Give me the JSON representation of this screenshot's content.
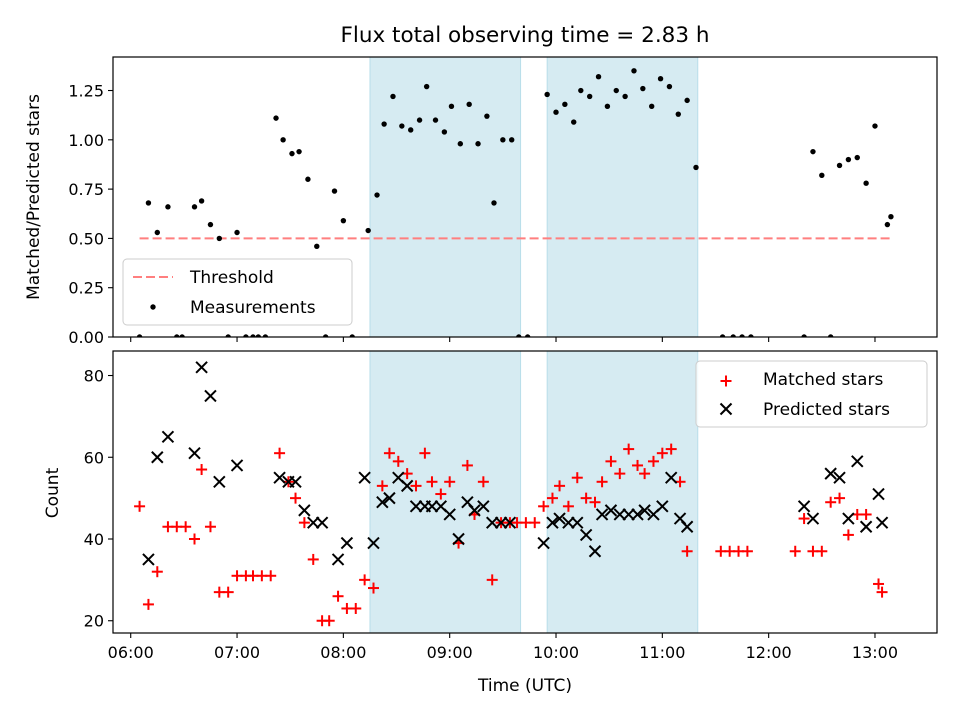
{
  "figure": {
    "title": "Flux total observing time = 2.83 h"
  },
  "chart_data": [
    {
      "type": "scatter",
      "ylabel": "Matched/Predicted stars",
      "ylim": [
        0,
        1.42
      ],
      "yticks": [
        "0.00",
        "0.25",
        "0.50",
        "0.75",
        "1.00",
        "1.25"
      ],
      "ytick_values": [
        0,
        0.25,
        0.5,
        0.75,
        1.0,
        1.25
      ],
      "xlim": [
        "05:50",
        "13:35"
      ],
      "shaded_intervals": [
        [
          "08:15",
          "09:40"
        ],
        [
          "09:55",
          "11:20"
        ]
      ],
      "shade_color": "#add8e6",
      "legend_position": "lower-left",
      "threshold": {
        "name": "Threshold",
        "value": 0.5,
        "x_range": [
          "06:05",
          "13:10"
        ],
        "color": "#ff7f7f"
      },
      "series": [
        {
          "name": "Measurements",
          "color": "#000000",
          "points": [
            [
              "06:05",
              0
            ],
            [
              "06:10",
              0.68
            ],
            [
              "06:15",
              0.53
            ],
            [
              "06:21",
              0.66
            ],
            [
              "06:26",
              0
            ],
            [
              "06:29",
              0
            ],
            [
              "06:36",
              0.66
            ],
            [
              "06:40",
              0.69
            ],
            [
              "06:45",
              0.57
            ],
            [
              "06:50",
              0.5
            ],
            [
              "06:55",
              0
            ],
            [
              "07:00",
              0.53
            ],
            [
              "07:05",
              0
            ],
            [
              "07:09",
              0
            ],
            [
              "07:12",
              0
            ],
            [
              "07:16",
              0
            ],
            [
              "07:22",
              1.11
            ],
            [
              "07:26",
              1.0
            ],
            [
              "07:31",
              0.93
            ],
            [
              "07:35",
              0.94
            ],
            [
              "07:40",
              0.8
            ],
            [
              "07:45",
              0.46
            ],
            [
              "07:50",
              0
            ],
            [
              "07:55",
              0.74
            ],
            [
              "08:00",
              0.59
            ],
            [
              "08:05",
              0
            ],
            [
              "08:14",
              0.54
            ],
            [
              "08:19",
              0.72
            ],
            [
              "08:23",
              1.08
            ],
            [
              "08:28",
              1.22
            ],
            [
              "08:33",
              1.07
            ],
            [
              "08:38",
              1.05
            ],
            [
              "08:43",
              1.1
            ],
            [
              "08:47",
              1.27
            ],
            [
              "08:52",
              1.1
            ],
            [
              "08:57",
              1.04
            ],
            [
              "09:01",
              1.17
            ],
            [
              "09:06",
              0.98
            ],
            [
              "09:11",
              1.18
            ],
            [
              "09:16",
              0.98
            ],
            [
              "09:21",
              1.12
            ],
            [
              "09:25",
              0.68
            ],
            [
              "09:30",
              1.0
            ],
            [
              "09:35",
              1.0
            ],
            [
              "09:39",
              0
            ],
            [
              "09:44",
              0
            ],
            [
              "09:55",
              1.23
            ],
            [
              "10:00",
              1.14
            ],
            [
              "10:05",
              1.18
            ],
            [
              "10:10",
              1.09
            ],
            [
              "10:14",
              1.25
            ],
            [
              "10:19",
              1.22
            ],
            [
              "10:24",
              1.32
            ],
            [
              "10:29",
              1.17
            ],
            [
              "10:34",
              1.25
            ],
            [
              "10:39",
              1.22
            ],
            [
              "10:44",
              1.35
            ],
            [
              "10:49",
              1.26
            ],
            [
              "10:54",
              1.17
            ],
            [
              "10:59",
              1.31
            ],
            [
              "11:04",
              1.27
            ],
            [
              "11:09",
              1.13
            ],
            [
              "11:14",
              1.2
            ],
            [
              "11:19",
              0.86
            ],
            [
              "11:34",
              0
            ],
            [
              "11:40",
              0
            ],
            [
              "11:45",
              0
            ],
            [
              "11:50",
              0
            ],
            [
              "12:20",
              0
            ],
            [
              "12:25",
              0.94
            ],
            [
              "12:30",
              0.82
            ],
            [
              "12:35",
              0
            ],
            [
              "12:40",
              0.87
            ],
            [
              "12:45",
              0.9
            ],
            [
              "12:50",
              0.91
            ],
            [
              "12:55",
              0.78
            ],
            [
              "13:00",
              1.07
            ],
            [
              "13:07",
              0.57
            ],
            [
              "13:09",
              0.61
            ]
          ]
        }
      ]
    },
    {
      "type": "scatter",
      "xlabel": "Time (UTC)",
      "ylabel": "Count",
      "ylim": [
        17,
        86
      ],
      "yticks": [
        "20",
        "40",
        "60",
        "80"
      ],
      "ytick_values": [
        20,
        40,
        60,
        80
      ],
      "xlim": [
        "05:50",
        "13:35"
      ],
      "xticks": [
        "06:00",
        "07:00",
        "08:00",
        "09:00",
        "10:00",
        "11:00",
        "12:00",
        "13:00"
      ],
      "shaded_intervals": [
        [
          "08:15",
          "09:40"
        ],
        [
          "09:55",
          "11:20"
        ]
      ],
      "shade_color": "#add8e6",
      "legend_position": "top-right",
      "series": [
        {
          "name": "Matched stars",
          "marker": "plus",
          "color": "#ff0000",
          "points": [
            [
              "06:05",
              48
            ],
            [
              "06:10",
              24
            ],
            [
              "06:15",
              32
            ],
            [
              "06:21",
              43
            ],
            [
              "06:26",
              43
            ],
            [
              "06:31",
              43
            ],
            [
              "06:36",
              40
            ],
            [
              "06:40",
              57
            ],
            [
              "06:45",
              43
            ],
            [
              "06:50",
              27
            ],
            [
              "06:55",
              27
            ],
            [
              "07:00",
              31
            ],
            [
              "07:05",
              31
            ],
            [
              "07:09",
              31
            ],
            [
              "07:14",
              31
            ],
            [
              "07:19",
              31
            ],
            [
              "07:24",
              61
            ],
            [
              "07:29",
              54
            ],
            [
              "07:33",
              50
            ],
            [
              "07:38",
              44
            ],
            [
              "07:43",
              35
            ],
            [
              "07:48",
              20
            ],
            [
              "07:52",
              20
            ],
            [
              "07:57",
              26
            ],
            [
              "08:02",
              23
            ],
            [
              "08:07",
              23
            ],
            [
              "08:12",
              30
            ],
            [
              "08:17",
              28
            ],
            [
              "08:22",
              53
            ],
            [
              "08:26",
              61
            ],
            [
              "08:31",
              59
            ],
            [
              "08:36",
              56
            ],
            [
              "08:41",
              53
            ],
            [
              "08:46",
              61
            ],
            [
              "08:50",
              54
            ],
            [
              "08:55",
              51
            ],
            [
              "09:00",
              54
            ],
            [
              "09:05",
              39
            ],
            [
              "09:10",
              58
            ],
            [
              "09:14",
              46
            ],
            [
              "09:19",
              54
            ],
            [
              "09:24",
              30
            ],
            [
              "09:29",
              44
            ],
            [
              "09:34",
              44
            ],
            [
              "09:38",
              44
            ],
            [
              "09:43",
              44
            ],
            [
              "09:48",
              44
            ],
            [
              "09:53",
              48
            ],
            [
              "09:58",
              50
            ],
            [
              "10:02",
              53
            ],
            [
              "10:07",
              48
            ],
            [
              "10:12",
              55
            ],
            [
              "10:17",
              50
            ],
            [
              "10:22",
              49
            ],
            [
              "10:26",
              54
            ],
            [
              "10:31",
              59
            ],
            [
              "10:36",
              56
            ],
            [
              "10:41",
              62
            ],
            [
              "10:46",
              58
            ],
            [
              "10:50",
              56
            ],
            [
              "10:55",
              59
            ],
            [
              "11:00",
              61
            ],
            [
              "11:05",
              62
            ],
            [
              "11:10",
              54
            ],
            [
              "11:14",
              37
            ],
            [
              "11:33",
              37
            ],
            [
              "11:38",
              37
            ],
            [
              "11:43",
              37
            ],
            [
              "11:48",
              37
            ],
            [
              "12:15",
              37
            ],
            [
              "12:20",
              45
            ],
            [
              "12:25",
              37
            ],
            [
              "12:30",
              37
            ],
            [
              "12:35",
              49
            ],
            [
              "12:40",
              50
            ],
            [
              "12:45",
              41
            ],
            [
              "12:50",
              46
            ],
            [
              "12:55",
              46
            ],
            [
              "13:02",
              29
            ],
            [
              "13:04",
              27
            ]
          ]
        },
        {
          "name": "Predicted stars",
          "marker": "x",
          "color": "#000000",
          "points": [
            [
              "06:10",
              35
            ],
            [
              "06:15",
              60
            ],
            [
              "06:21",
              65
            ],
            [
              "06:36",
              61
            ],
            [
              "06:40",
              82
            ],
            [
              "06:45",
              75
            ],
            [
              "06:50",
              54
            ],
            [
              "07:00",
              58
            ],
            [
              "07:24",
              55
            ],
            [
              "07:29",
              54
            ],
            [
              "07:33",
              54
            ],
            [
              "07:38",
              47
            ],
            [
              "07:43",
              44
            ],
            [
              "07:48",
              44
            ],
            [
              "07:57",
              35
            ],
            [
              "08:02",
              39
            ],
            [
              "08:12",
              55
            ],
            [
              "08:17",
              39
            ],
            [
              "08:22",
              49
            ],
            [
              "08:26",
              50
            ],
            [
              "08:31",
              55
            ],
            [
              "08:36",
              53
            ],
            [
              "08:41",
              48
            ],
            [
              "08:46",
              48
            ],
            [
              "08:50",
              48
            ],
            [
              "08:55",
              48
            ],
            [
              "09:00",
              46
            ],
            [
              "09:05",
              40
            ],
            [
              "09:10",
              49
            ],
            [
              "09:14",
              47
            ],
            [
              "09:19",
              48
            ],
            [
              "09:24",
              44
            ],
            [
              "09:29",
              44
            ],
            [
              "09:34",
              44
            ],
            [
              "09:53",
              39
            ],
            [
              "09:58",
              44
            ],
            [
              "10:02",
              45
            ],
            [
              "10:07",
              44
            ],
            [
              "10:12",
              44
            ],
            [
              "10:17",
              41
            ],
            [
              "10:22",
              37
            ],
            [
              "10:26",
              46
            ],
            [
              "10:31",
              47
            ],
            [
              "10:36",
              46
            ],
            [
              "10:41",
              46
            ],
            [
              "10:46",
              46
            ],
            [
              "10:50",
              47
            ],
            [
              "10:55",
              46
            ],
            [
              "11:00",
              48
            ],
            [
              "11:05",
              55
            ],
            [
              "11:10",
              45
            ],
            [
              "11:14",
              43
            ],
            [
              "12:20",
              48
            ],
            [
              "12:25",
              45
            ],
            [
              "12:35",
              56
            ],
            [
              "12:40",
              55
            ],
            [
              "12:45",
              45
            ],
            [
              "12:50",
              59
            ],
            [
              "12:55",
              43
            ],
            [
              "13:02",
              51
            ],
            [
              "13:04",
              44
            ]
          ]
        }
      ]
    }
  ]
}
